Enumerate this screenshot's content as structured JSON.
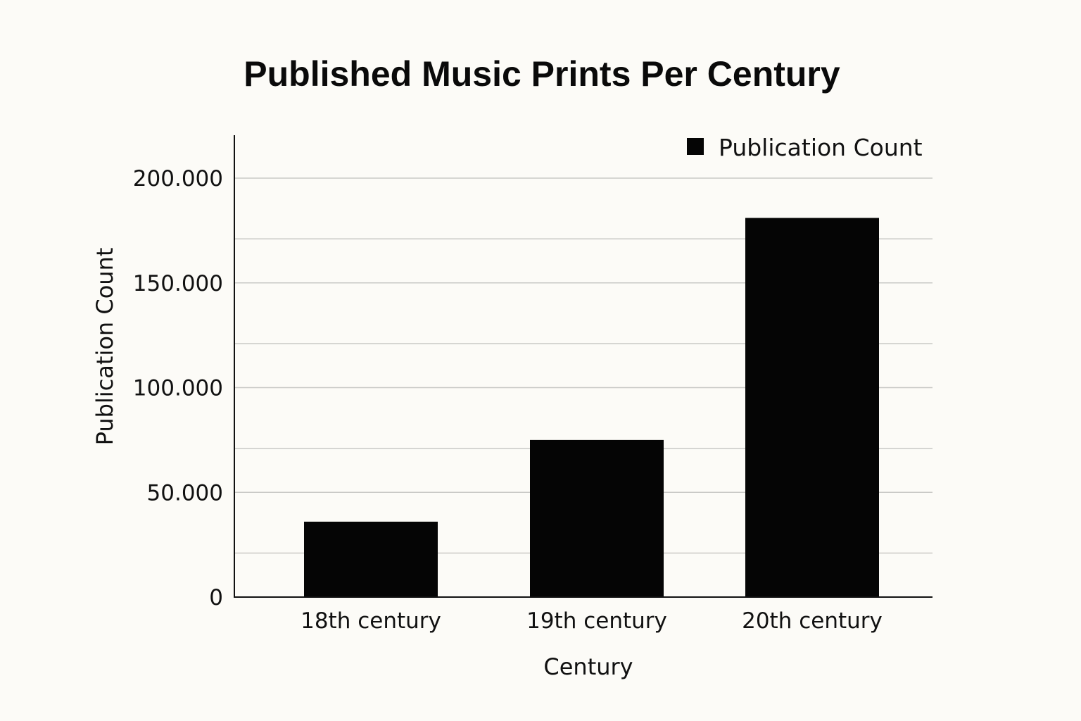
{
  "chart_data": {
    "type": "bar",
    "title": "Published Music Prints Per Century",
    "xlabel": "Century",
    "ylabel": "Publication Count",
    "categories": [
      "18th century",
      "19th century",
      "20th century"
    ],
    "series": [
      {
        "name": "Publication Count",
        "values": [
          36000,
          75000,
          181000
        ],
        "color": "#050505"
      }
    ],
    "ylim": [
      0,
      220000
    ],
    "yticks": [
      0,
      50000,
      100000,
      150000,
      200000
    ],
    "ytick_labels": [
      "0",
      "50.000",
      "100.000",
      "150.000",
      "200.000"
    ],
    "minor_gridlines": [
      21000,
      71000,
      121000,
      171000
    ],
    "grid": true,
    "legend_position": "top-right"
  }
}
